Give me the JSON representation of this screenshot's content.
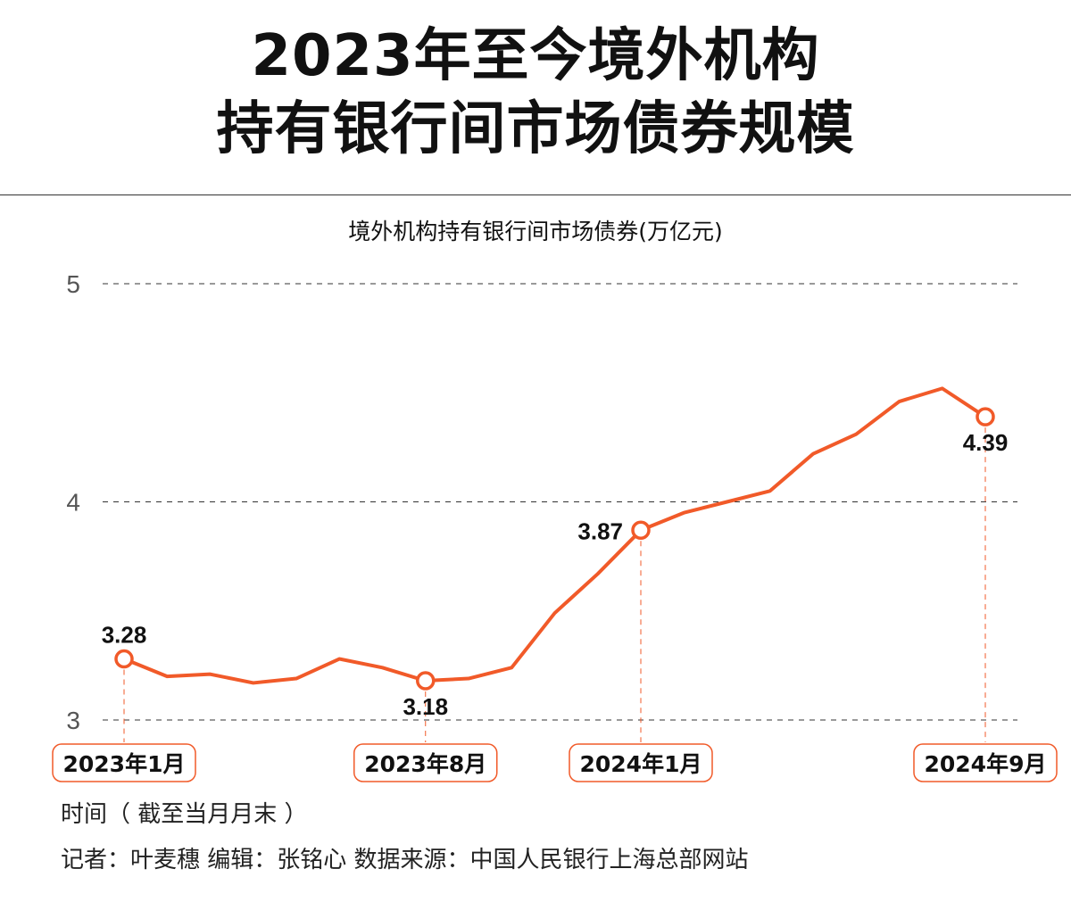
{
  "title_lines": [
    "2023年至今境外机构",
    "持有银行间市场债券规模"
  ],
  "chart_data": {
    "type": "line",
    "title": "境外机构持有银行间市场债券(万亿元)",
    "xlabel": "时间（ 截至当月月末 ）",
    "ylabel": "",
    "ylim": [
      3,
      5
    ],
    "yticks": [
      3,
      4,
      5
    ],
    "grid": "horizontal dashed",
    "x": [
      "2023-01",
      "2023-02",
      "2023-03",
      "2023-04",
      "2023-05",
      "2023-06",
      "2023-07",
      "2023-08",
      "2023-09",
      "2023-10",
      "2023-11",
      "2023-12",
      "2024-01",
      "2024-02",
      "2024-03",
      "2024-04",
      "2024-05",
      "2024-06",
      "2024-07",
      "2024-08",
      "2024-09"
    ],
    "values": [
      3.28,
      3.2,
      3.21,
      3.17,
      3.19,
      3.28,
      3.24,
      3.18,
      3.19,
      3.24,
      3.49,
      3.67,
      3.87,
      3.95,
      4.0,
      4.05,
      4.22,
      4.31,
      4.46,
      4.52,
      4.39
    ],
    "highlights": [
      {
        "index": 0,
        "label": "3.28",
        "date_label": "2023年1月",
        "label_pos": "above"
      },
      {
        "index": 7,
        "label": "3.18",
        "date_label": "2023年8月",
        "label_pos": "below"
      },
      {
        "index": 12,
        "label": "3.87",
        "date_label": "2024年1月",
        "label_pos": "left"
      },
      {
        "index": 20,
        "label": "4.39",
        "date_label": "2024年9月",
        "label_pos": "below"
      }
    ],
    "color": "#f15a29"
  },
  "footer": {
    "credits": "记者：叶麦穗  编辑：张铭心   数据来源：中国人民银行上海总部网站"
  }
}
